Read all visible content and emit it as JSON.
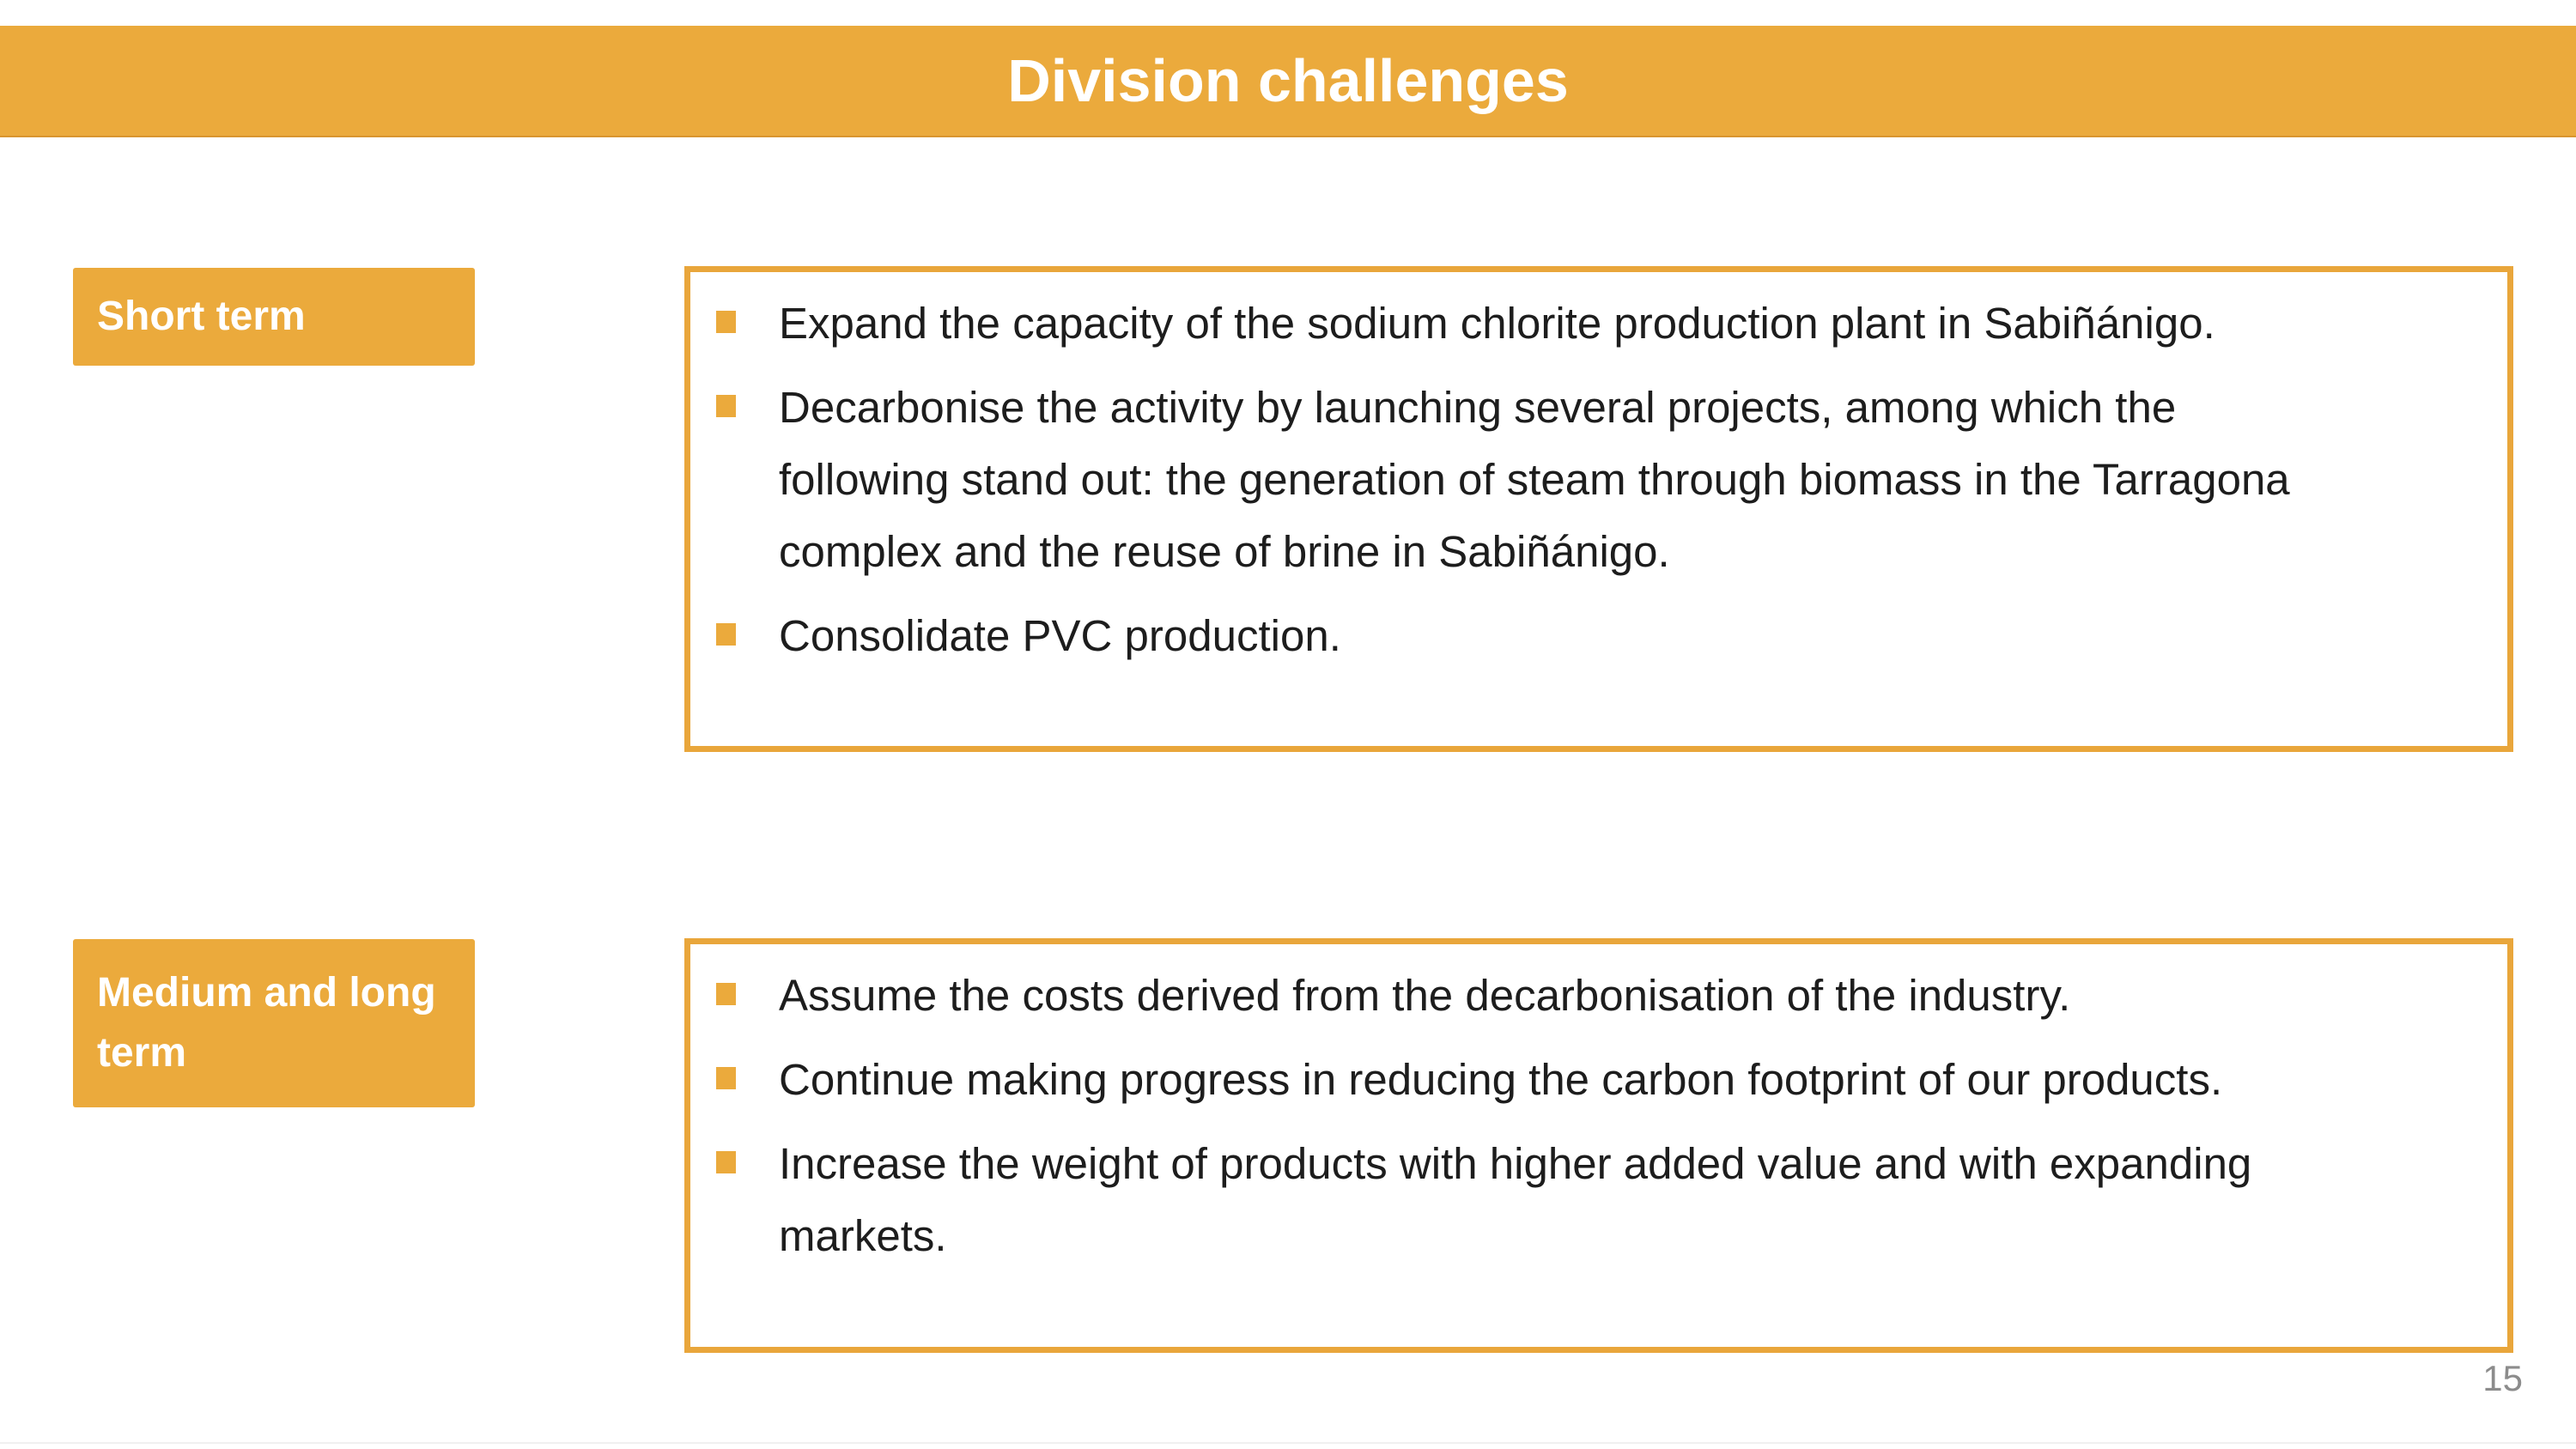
{
  "slide": {
    "title": "Division challenges",
    "page_number": "15",
    "colors": {
      "accent": "#ebaa3c",
      "box_border": "#e9a63b",
      "body_text": "#1d1d1d",
      "page_number": "#8c8c8c"
    },
    "sections": [
      {
        "label": "Short term",
        "bullets": [
          "Expand the capacity of the sodium chlorite production plant in Sabiñánigo.",
          "Decarbonise the activity by launching several projects, among which the following stand out: the generation of steam through biomass in the Tarragona complex and the reuse of brine in Sabiñánigo.",
          "Consolidate PVC production."
        ]
      },
      {
        "label": "Medium and long term",
        "bullets": [
          "Assume the costs derived from the decarbonisation of the industry.",
          "Continue making progress in reducing the carbon footprint of our products.",
          "Increase the weight of products with higher added value and with expanding markets."
        ]
      }
    ]
  }
}
